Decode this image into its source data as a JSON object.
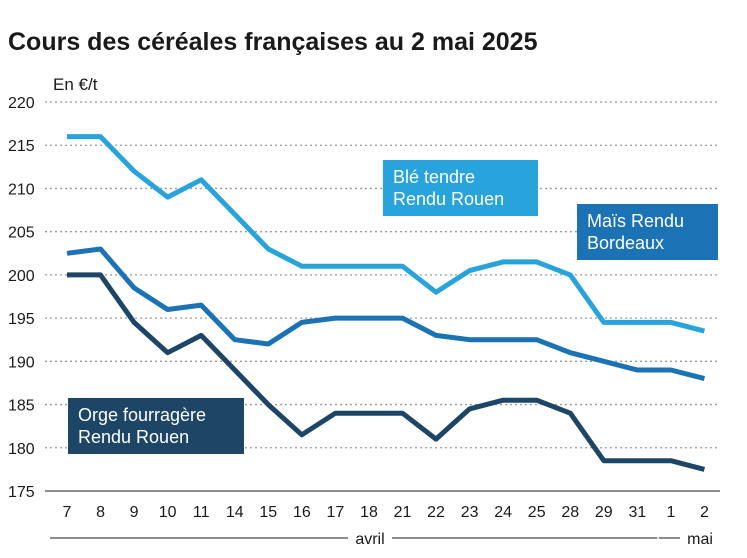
{
  "chart_data": {
    "type": "line",
    "title": "Cours des céréales françaises au 2 mai 2025",
    "unit_label": "En €/t",
    "ylim": [
      175,
      220
    ],
    "yticks": [
      175,
      180,
      185,
      190,
      195,
      200,
      205,
      210,
      215,
      220
    ],
    "categories": [
      "7",
      "8",
      "9",
      "10",
      "11",
      "14",
      "15",
      "16",
      "17",
      "18",
      "21",
      "22",
      "23",
      "24",
      "25",
      "28",
      "29",
      "31",
      "1",
      "2"
    ],
    "month_labels": [
      {
        "label": "avril",
        "from": 0,
        "to": 17
      },
      {
        "label": "mai",
        "from": 18,
        "to": 19
      }
    ],
    "grid": true,
    "series": [
      {
        "name": "Blé tendre Rendu Rouen",
        "color": "#29a3dc",
        "values": [
          216,
          216,
          212,
          209,
          211,
          207,
          203,
          201,
          201,
          201,
          201,
          198,
          200.5,
          201.5,
          201.5,
          200,
          194.5,
          194.5,
          194.5,
          193.5
        ]
      },
      {
        "name": "Maïs Rendu Bordeaux",
        "color": "#1b72b5",
        "values": [
          202.5,
          203,
          198.5,
          196,
          196.5,
          192.5,
          192,
          194.5,
          195,
          195,
          195,
          193,
          192.5,
          192.5,
          192.5,
          191,
          190,
          189,
          189,
          188
        ]
      },
      {
        "name": "Orge fourragère Rendu Rouen",
        "color": "#1d4566",
        "values": [
          200,
          200,
          194.5,
          191,
          193,
          189,
          185,
          181.5,
          184,
          184,
          184,
          181,
          184.5,
          185.5,
          185.5,
          184,
          178.5,
          178.5,
          178.5,
          177.5
        ]
      }
    ]
  }
}
